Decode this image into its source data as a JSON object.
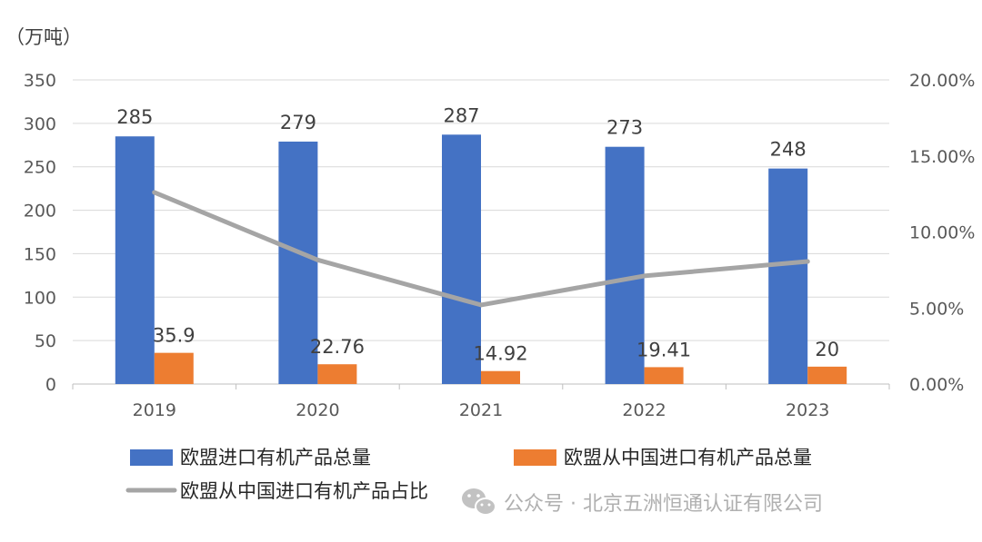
{
  "chart_data": {
    "type": "bar",
    "categories": [
      "2019",
      "2020",
      "2021",
      "2022",
      "2023"
    ],
    "unit_label": "（万吨）",
    "y_left": {
      "min": 0,
      "max": 350,
      "ticks": [
        "0",
        "50",
        "100",
        "150",
        "200",
        "250",
        "300",
        "350"
      ]
    },
    "y_right": {
      "min": 0,
      "max": 20,
      "ticks": [
        "0.00%",
        "5.00%",
        "10.00%",
        "15.00%",
        "20.00%"
      ]
    },
    "series": [
      {
        "name": "欧盟进口有机产品总量",
        "type": "bar",
        "axis": "left",
        "color": "#4472C4",
        "values": [
          285,
          279,
          287,
          273,
          248
        ],
        "labels": [
          "285",
          "279",
          "287",
          "273",
          "248"
        ]
      },
      {
        "name": "欧盟从中国进口有机产品总量",
        "type": "bar",
        "axis": "left",
        "color": "#ED7D31",
        "values": [
          35.9,
          22.76,
          14.92,
          19.41,
          20
        ],
        "labels": [
          "35.9",
          "22.76",
          "14.92",
          "19.41",
          "20"
        ]
      },
      {
        "name": "欧盟从中国进口有机产品占比",
        "type": "line",
        "axis": "right",
        "color": "#A5A5A5",
        "values": [
          12.6,
          8.16,
          5.2,
          7.11,
          8.06
        ]
      }
    ],
    "grid": true,
    "legend": "bottom"
  },
  "watermark": {
    "text": "公众号 · 北京五洲恒通认证有限公司",
    "icon": "wechat-icon"
  }
}
